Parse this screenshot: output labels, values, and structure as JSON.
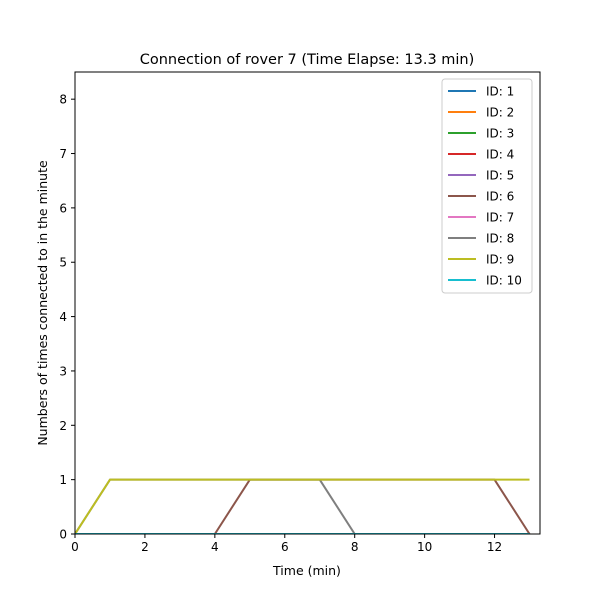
{
  "chart_data": {
    "type": "line",
    "title": "Connection of rover 7 (Time Elapse: 13.3 min)",
    "xlabel": "Time (min)",
    "ylabel": "Numbers of times connected to in the minute",
    "xlim": [
      0,
      13.3
    ],
    "ylim": [
      0,
      8.5
    ],
    "x_ticks": [
      0,
      2,
      4,
      6,
      8,
      10,
      12
    ],
    "y_ticks": [
      0,
      1,
      2,
      3,
      4,
      5,
      6,
      7,
      8
    ],
    "grid": false,
    "legend_position": "top-right",
    "x": [
      0,
      1,
      2,
      3,
      4,
      5,
      6,
      7,
      8,
      9,
      10,
      11,
      12,
      13
    ],
    "series": [
      {
        "name": "ID: 1",
        "color": "#1f77b4",
        "values": [
          0,
          0,
          0,
          0,
          0,
          0,
          0,
          0,
          0,
          0,
          0,
          0,
          0,
          0
        ]
      },
      {
        "name": "ID: 2",
        "color": "#ff7f0e",
        "values": [
          0,
          0,
          0,
          0,
          0,
          0,
          0,
          0,
          0,
          0,
          0,
          0,
          0,
          0
        ]
      },
      {
        "name": "ID: 3",
        "color": "#2ca02c",
        "values": [
          0,
          0,
          0,
          0,
          0,
          0,
          0,
          0,
          0,
          0,
          0,
          0,
          0,
          0
        ]
      },
      {
        "name": "ID: 4",
        "color": "#d62728",
        "values": [
          0,
          0,
          0,
          0,
          0,
          0,
          0,
          0,
          0,
          0,
          0,
          0,
          0,
          0
        ]
      },
      {
        "name": "ID: 5",
        "color": "#9467bd",
        "values": [
          0,
          0,
          0,
          0,
          0,
          0,
          0,
          0,
          0,
          0,
          0,
          0,
          0,
          0
        ]
      },
      {
        "name": "ID: 6",
        "color": "#8c564b",
        "values": [
          0,
          0,
          0,
          0,
          0,
          1,
          1,
          1,
          1,
          1,
          1,
          1,
          1,
          0
        ]
      },
      {
        "name": "ID: 7",
        "color": "#e377c2",
        "values": [
          0,
          0,
          0,
          0,
          0,
          0,
          0,
          0,
          0,
          0,
          0,
          0,
          0,
          0
        ]
      },
      {
        "name": "ID: 8",
        "color": "#7f7f7f",
        "values": [
          0,
          1,
          1,
          1,
          1,
          1,
          1,
          1,
          0,
          0,
          0,
          0,
          0,
          0
        ]
      },
      {
        "name": "ID: 9",
        "color": "#bcbd22",
        "values": [
          0,
          1,
          1,
          1,
          1,
          1,
          1,
          1,
          1,
          1,
          1,
          1,
          1,
          1
        ]
      },
      {
        "name": "ID: 10",
        "color": "#17becf",
        "values": [
          0,
          0,
          0,
          0,
          0,
          0,
          0,
          0,
          0,
          0,
          0,
          0,
          0,
          0
        ]
      }
    ]
  }
}
